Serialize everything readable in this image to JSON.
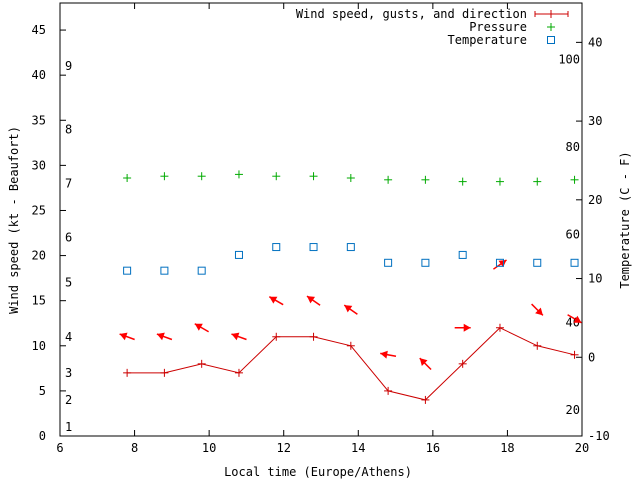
{
  "chart_data": {
    "type": "line",
    "xlabel": "Local time (Europe/Athens)",
    "ylabel_left": "Wind speed (kt - Beaufort)",
    "ylabel_right": "Temperature (C - F)",
    "xlim": [
      6,
      20
    ],
    "ylim_left": [
      0,
      48
    ],
    "ylim_right": [
      -10,
      45
    ],
    "x_ticks": [
      6,
      8,
      10,
      12,
      14,
      16,
      18,
      20
    ],
    "y_left_ticks": [
      0,
      5,
      10,
      15,
      20,
      25,
      30,
      35,
      40,
      45
    ],
    "y_right_ticks": [
      -10,
      0,
      10,
      20,
      30,
      40
    ],
    "beaufort_labels": [
      {
        "value": "1",
        "y": 1
      },
      {
        "value": "2",
        "y": 4
      },
      {
        "value": "3",
        "y": 7
      },
      {
        "value": "4",
        "y": 11
      },
      {
        "value": "5",
        "y": 17
      },
      {
        "value": "6",
        "y": 22
      },
      {
        "value": "7",
        "y": 28
      },
      {
        "value": "8",
        "y": 34
      },
      {
        "value": "9",
        "y": 41
      }
    ],
    "fahrenheit_labels": [
      {
        "value": "20",
        "temp": -6.7
      },
      {
        "value": "40",
        "temp": 4.4
      },
      {
        "value": "60",
        "temp": 15.6
      },
      {
        "value": "80",
        "temp": 26.7
      },
      {
        "value": "100",
        "temp": 37.8
      }
    ],
    "legend": [
      {
        "label": "Wind speed, gusts, and direction",
        "color": "#cc0000"
      },
      {
        "label": "Pressure",
        "color": "#00aa00"
      },
      {
        "label": "Temperature",
        "color": "#0070c0"
      }
    ],
    "series": [
      {
        "name": "Wind speed, gusts, and direction",
        "axis": "left",
        "color": "#cc0000",
        "x": [
          7.8,
          8.8,
          9.8,
          10.8,
          11.8,
          12.8,
          13.8,
          14.8,
          15.8,
          16.8,
          17.8,
          18.8,
          19.8
        ],
        "values": [
          7,
          7,
          8,
          7,
          11,
          11,
          10,
          5,
          4,
          8,
          12,
          10,
          9
        ]
      },
      {
        "name": "Wind direction arrows",
        "axis": "left",
        "color": "#ff0000",
        "x": [
          7.8,
          8.8,
          9.8,
          10.8,
          11.8,
          12.8,
          13.8,
          14.8,
          15.8,
          16.8,
          17.8,
          18.8,
          19.8
        ],
        "values": [
          11,
          11,
          12,
          11,
          15,
          15,
          14,
          9,
          8,
          12,
          19,
          14,
          13
        ],
        "direction_deg": [
          110,
          110,
          120,
          110,
          120,
          125,
          125,
          100,
          135,
          270,
          235,
          315,
          300
        ]
      },
      {
        "name": "Pressure",
        "axis": "left",
        "color": "#00aa00",
        "x": [
          7.8,
          8.8,
          9.8,
          10.8,
          11.8,
          12.8,
          13.8,
          14.8,
          15.8,
          16.8,
          17.8,
          18.8,
          19.8
        ],
        "values": [
          28.6,
          28.8,
          28.8,
          29,
          28.8,
          28.8,
          28.6,
          28.4,
          28.4,
          28.2,
          28.2,
          28.2,
          28.4
        ]
      },
      {
        "name": "Temperature",
        "axis": "right",
        "color": "#0070c0",
        "x": [
          7.8,
          8.8,
          9.8,
          10.8,
          11.8,
          12.8,
          13.8,
          14.8,
          15.8,
          16.8,
          17.8,
          18.8,
          19.8
        ],
        "values": [
          11,
          11,
          11,
          13,
          14,
          14,
          14,
          12,
          12,
          13,
          12,
          12,
          12
        ]
      }
    ]
  }
}
